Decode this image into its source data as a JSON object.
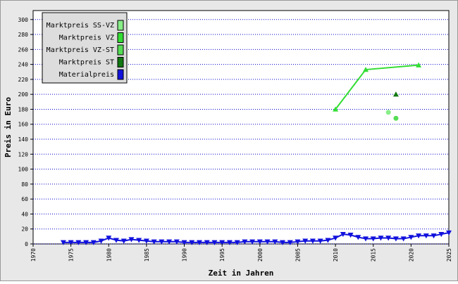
{
  "chart_data": {
    "type": "line",
    "x_label": "Zeit in Jahren",
    "y_label": "Preis in Euro",
    "xlim": [
      1970,
      2025
    ],
    "xticks": [
      1970,
      1975,
      1980,
      1985,
      1990,
      1995,
      2000,
      2005,
      2010,
      2015,
      2020,
      2025
    ],
    "ylim": [
      0,
      312
    ],
    "yticks": [
      0,
      20,
      40,
      60,
      80,
      100,
      120,
      140,
      160,
      180,
      200,
      220,
      240,
      260,
      280,
      300
    ],
    "grid": true,
    "legend": "top-left",
    "series": [
      {
        "name": "Marktpreis SS-VZ",
        "color": "#88ee88",
        "marker": "circle",
        "x": [
          2017
        ],
        "values": [
          176
        ]
      },
      {
        "name": "Marktpreis VZ",
        "color": "#33dd33",
        "marker": "triangle",
        "x": [
          2010,
          2014,
          2021
        ],
        "values": [
          180,
          233,
          239
        ]
      },
      {
        "name": "Marktpreis VZ-ST",
        "color": "#55dd55",
        "marker": "circle",
        "x": [
          2018
        ],
        "values": [
          168
        ]
      },
      {
        "name": "Marktpreis ST",
        "color": "#117711",
        "marker": "triangle",
        "x": [
          2018
        ],
        "values": [
          200
        ]
      },
      {
        "name": "Materialpreis",
        "color": "#1111dd",
        "marker": "triangle-down",
        "x": [
          1974,
          1975,
          1976,
          1977,
          1978,
          1979,
          1980,
          1981,
          1982,
          1983,
          1984,
          1985,
          1986,
          1987,
          1988,
          1989,
          1990,
          1991,
          1992,
          1993,
          1994,
          1995,
          1996,
          1997,
          1998,
          1999,
          2000,
          2001,
          2002,
          2003,
          2004,
          2005,
          2006,
          2007,
          2008,
          2009,
          2010,
          2011,
          2012,
          2013,
          2014,
          2015,
          2016,
          2017,
          2018,
          2019,
          2020,
          2021,
          2022,
          2023,
          2024,
          2025
        ],
        "values": [
          2,
          2,
          2,
          2,
          2,
          4,
          8,
          5,
          4,
          6,
          5,
          4,
          3,
          3,
          3,
          3,
          2,
          2,
          2,
          2,
          2,
          2,
          2,
          2,
          3,
          3,
          3,
          3,
          3,
          2,
          2,
          3,
          4,
          4,
          4,
          5,
          8,
          13,
          12,
          9,
          7,
          7,
          8,
          8,
          7,
          7,
          9,
          11,
          11,
          11,
          13,
          15
        ]
      }
    ]
  }
}
